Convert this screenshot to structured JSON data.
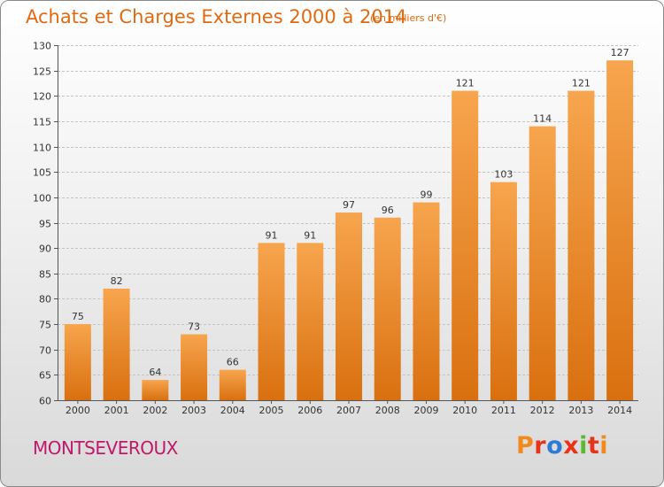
{
  "header": {
    "title": "Achats et Charges Externes 2000 à 2014",
    "subtitle": "(en milliers d'€)"
  },
  "footer": {
    "place": "MONTSEVEROUX",
    "brand": "Proxiti"
  },
  "colors": {
    "bar_light": "#f7a54e",
    "bar_dark": "#d9700f",
    "title": "#e06a10",
    "place": "#c0186a",
    "brand_letters": [
      "#f08a1c",
      "#e8331a",
      "#2e7bd6",
      "#e8331a",
      "#5cb82e",
      "#e8331a",
      "#f08a1c"
    ]
  },
  "chart_data": {
    "type": "bar",
    "categories": [
      "2000",
      "2001",
      "2002",
      "2003",
      "2004",
      "2005",
      "2006",
      "2007",
      "2008",
      "2009",
      "2010",
      "2011",
      "2012",
      "2013",
      "2014"
    ],
    "values": [
      75,
      82,
      64,
      73,
      66,
      91,
      91,
      97,
      96,
      99,
      121,
      103,
      114,
      121,
      127
    ],
    "ylim": [
      60,
      130
    ],
    "yticks": [
      60,
      65,
      70,
      75,
      80,
      85,
      90,
      95,
      100,
      105,
      110,
      115,
      120,
      125,
      130
    ],
    "grid": true,
    "title": "Achats et Charges Externes 2000 à 2014",
    "xlabel": "",
    "ylabel": ""
  }
}
